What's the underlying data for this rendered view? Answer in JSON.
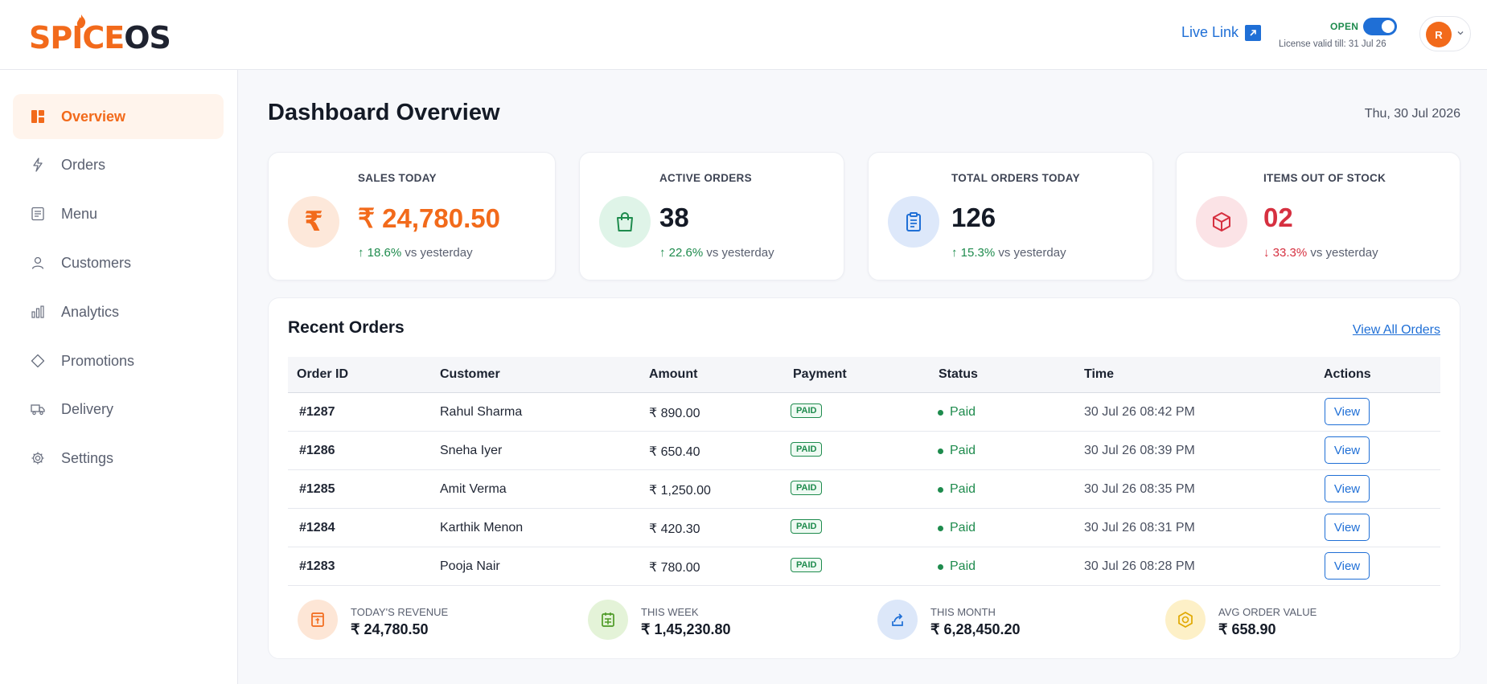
{
  "brand": {
    "spice": "SPICE",
    "os": "OS"
  },
  "header": {
    "live_link": "Live Link",
    "open_label": "OPEN",
    "license": "License valid till: 31 Jul 26",
    "avatar_initial": "R"
  },
  "sidebar": {
    "items": [
      {
        "label": "Overview",
        "icon": "grid-icon",
        "active": true
      },
      {
        "label": "Orders",
        "icon": "lightning-icon"
      },
      {
        "label": "Menu",
        "icon": "menu-list-icon"
      },
      {
        "label": "Customers",
        "icon": "user-icon"
      },
      {
        "label": "Analytics",
        "icon": "bar-chart-icon"
      },
      {
        "label": "Promotions",
        "icon": "tag-icon"
      },
      {
        "label": "Delivery",
        "icon": "truck-icon"
      },
      {
        "label": "Settings",
        "icon": "gear-icon"
      }
    ]
  },
  "main": {
    "title": "Dashboard Overview",
    "date": "Thu, 30 Jul 2026"
  },
  "cards": [
    {
      "label": "SALES TODAY",
      "value": "₹ 24,780.50",
      "delta": "↑ 18.6%",
      "suffix": "vs yesterday",
      "icon": "rupee-icon",
      "accent": "#f26a1b"
    },
    {
      "label": "ACTIVE ORDERS",
      "value": "38",
      "delta": "↑ 22.6%",
      "suffix": "vs yesterday",
      "icon": "shopping-bag-icon",
      "accent": "#1e8b4d"
    },
    {
      "label": "TOTAL ORDERS TODAY",
      "value": "126",
      "delta": "↑ 15.3%",
      "suffix": "vs yesterday",
      "icon": "clipboard-icon",
      "accent": "#1f6fd6"
    },
    {
      "label": "ITEMS OUT OF STOCK",
      "value": "02",
      "delta": "↓ 33.3%",
      "suffix": "vs yesterday",
      "icon": "box-icon",
      "accent": "#d63040"
    }
  ],
  "orders": {
    "title": "Recent Orders",
    "view_all": "View All Orders",
    "columns": [
      "Order ID",
      "Customer",
      "Amount",
      "Payment",
      "Status",
      "Time",
      "Actions"
    ],
    "rows": [
      {
        "id": "#1287",
        "customer": "Rahul Sharma",
        "amount": "₹ 890.00",
        "payment": "PAID",
        "status": "Paid",
        "time": "30 Jul 26 08:42 PM",
        "action": "View"
      },
      {
        "id": "#1286",
        "customer": "Sneha Iyer",
        "amount": "₹ 650.40",
        "payment": "PAID",
        "status": "Paid",
        "time": "30 Jul 26 08:39 PM",
        "action": "View"
      },
      {
        "id": "#1285",
        "customer": "Amit Verma",
        "amount": "₹ 1,250.00",
        "payment": "PAID",
        "status": "Paid",
        "time": "30 Jul 26 08:35 PM",
        "action": "View"
      },
      {
        "id": "#1284",
        "customer": "Karthik Menon",
        "amount": "₹ 420.30",
        "payment": "PAID",
        "status": "Paid",
        "time": "30 Jul 26 08:31 PM",
        "action": "View"
      },
      {
        "id": "#1283",
        "customer": "Pooja Nair",
        "amount": "₹ 780.00",
        "payment": "PAID",
        "status": "Paid",
        "time": "30 Jul 26 08:28 PM",
        "action": "View"
      }
    ]
  },
  "summary": [
    {
      "label": "TODAY'S REVENUE",
      "value": "₹ 24,780.50",
      "icon": "receipt-icon"
    },
    {
      "label": "THIS WEEK",
      "value": "₹ 1,45,230.80",
      "icon": "calendar-icon"
    },
    {
      "label": "THIS MONTH",
      "value": "₹ 6,28,450.20",
      "icon": "share-icon"
    },
    {
      "label": "AVG ORDER VALUE",
      "value": "₹ 658.90",
      "icon": "coin-icon"
    }
  ],
  "colors": {
    "brand": "#f26a1b",
    "link": "#1f6fd6",
    "success": "#1e8b4d",
    "danger": "#d63040"
  }
}
